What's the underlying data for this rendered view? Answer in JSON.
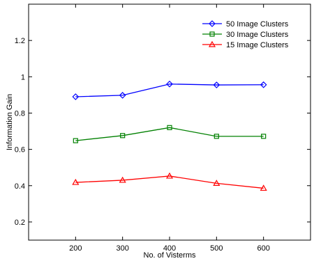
{
  "chart_data": {
    "type": "line",
    "xlabel": "No. of Visterms",
    "ylabel": "Information Gain",
    "x": [
      200,
      300,
      400,
      500,
      600
    ],
    "xlim": [
      100,
      700
    ],
    "ylim": [
      0.1,
      1.4
    ],
    "xticks": [
      "200",
      "300",
      "400",
      "500",
      "600"
    ],
    "yticks": [
      "0.2",
      "0.4",
      "0.6",
      "0.8",
      "1",
      "1.2"
    ],
    "legend_position": "top-right",
    "grid": false,
    "series": [
      {
        "name": "50 Image Clusters",
        "color": "#0000ff",
        "marker": "diamond",
        "values": [
          0.89,
          0.898,
          0.96,
          0.955,
          0.956
        ]
      },
      {
        "name": "30 Image Clusters",
        "color": "#008000",
        "marker": "square",
        "values": [
          0.648,
          0.676,
          0.72,
          0.672,
          0.672
        ]
      },
      {
        "name": "15 Image Clusters",
        "color": "#ff0000",
        "marker": "triangle",
        "values": [
          0.418,
          0.43,
          0.453,
          0.413,
          0.386
        ]
      }
    ]
  }
}
